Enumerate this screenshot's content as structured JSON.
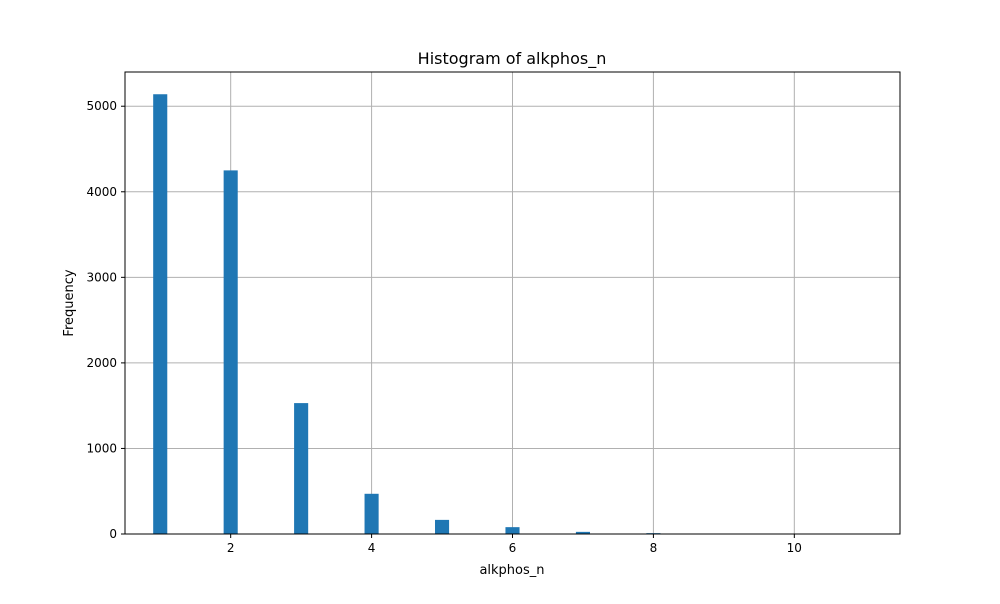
{
  "chart_data": {
    "type": "bar",
    "title": "Histogram of alkphos_n",
    "xlabel": "alkphos_n",
    "ylabel": "Frequency",
    "xlim": [
      0.5,
      11.5
    ],
    "ylim": [
      0,
      5400
    ],
    "grid": true,
    "xticks": [
      2,
      4,
      6,
      8,
      10
    ],
    "yticks": [
      0,
      1000,
      2000,
      3000,
      4000,
      5000
    ],
    "bin_width": 0.2,
    "bars": [
      {
        "x": 1,
        "value": 5140
      },
      {
        "x": 2,
        "value": 4250
      },
      {
        "x": 3,
        "value": 1530
      },
      {
        "x": 4,
        "value": 470
      },
      {
        "x": 5,
        "value": 165
      },
      {
        "x": 6,
        "value": 80
      },
      {
        "x": 7,
        "value": 25
      },
      {
        "x": 8,
        "value": 10
      },
      {
        "x": 9,
        "value": 3
      },
      {
        "x": 10,
        "value": 2
      },
      {
        "x": 11,
        "value": 1
      }
    ],
    "bar_color": "#1f77b4",
    "grid_color": "#b0b0b0"
  }
}
